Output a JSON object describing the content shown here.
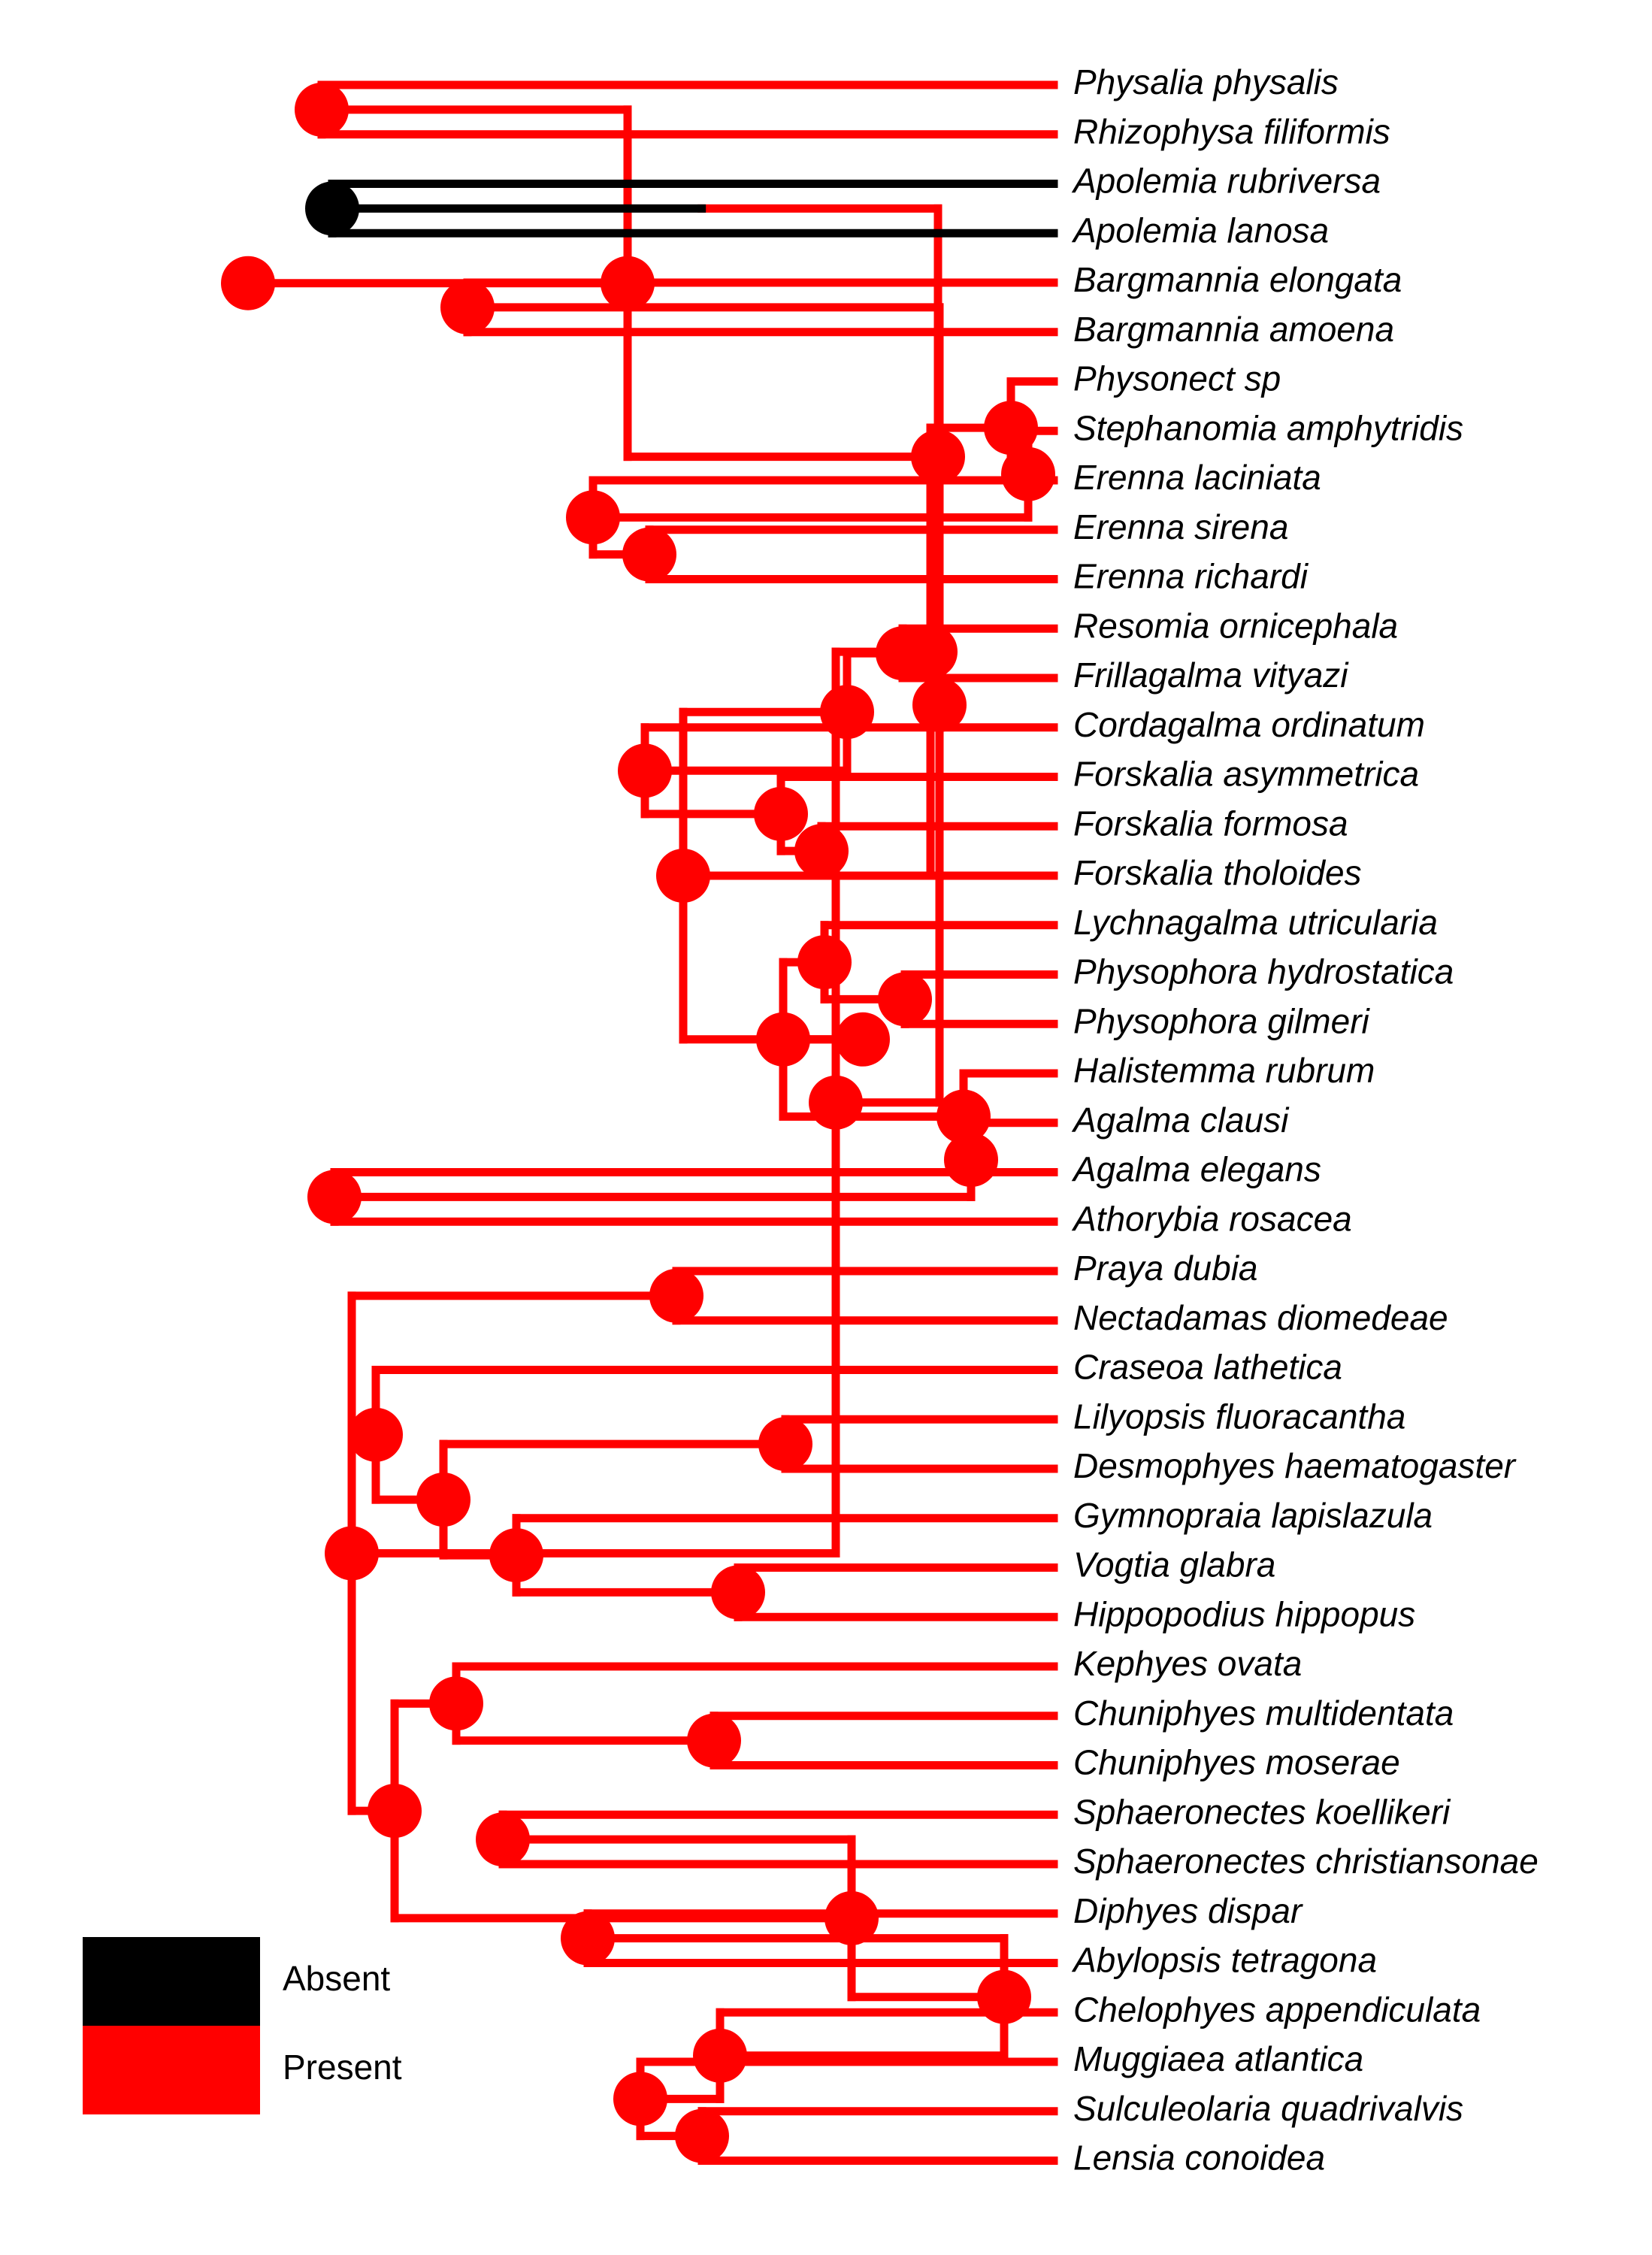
{
  "colors": {
    "present": "#ff0000",
    "absent": "#000000"
  },
  "legend": [
    {
      "state": "absent",
      "label": "Absent",
      "color": "#000000"
    },
    {
      "state": "present",
      "label": "Present",
      "color": "#ff0000"
    }
  ],
  "taxa": [
    "Physalia physalis",
    "Rhizophysa filiformis",
    "Apolemia rubriversa",
    "Apolemia lanosa",
    "Bargmannia elongata",
    "Bargmannia amoena",
    "Physonect sp",
    "Stephanomia amphytridis",
    "Erenna laciniata",
    "Erenna sirena",
    "Erenna richardi",
    "Resomia ornicephala",
    "Frillagalma vityazi",
    "Cordagalma ordinatum",
    "Forskalia asymmetrica",
    "Forskalia formosa",
    "Forskalia tholoides",
    "Lychnagalma utricularia",
    "Physophora hydrostatica",
    "Physophora gilmeri",
    "Halistemma rubrum",
    "Agalma clausi",
    "Agalma elegans",
    "Athorybia rosacea",
    "Praya dubia",
    "Nectadamas diomedeae",
    "Craseoa lathetica",
    "Lilyopsis fluoracantha",
    "Desmophyes haematogaster",
    "Gymnopraia lapislazula",
    "Vogtia glabra",
    "Hippopodius hippopus",
    "Kephyes ovata",
    "Chuniphyes multidentata",
    "Chuniphyes moserae",
    "Sphaeronectes koellikeri",
    "Sphaeronectes christiansonae",
    "Diphyes dispar",
    "Abylopsis tetragona",
    "Chelophyes appendiculata",
    "Muggiaea atlantica",
    "Sulculeolaria quadrivalvis",
    "Lensia conoidea"
  ],
  "tree_newick": "(((Physalia physalis,Rhizophysa filiformis),((Apolemia rubriversa,Apolemia lanosa),((Bargmannia elongata,Bargmannia amoena),(((Physonect sp,(Stephanomia amphytridis,(Erenna laciniata,(Erenna sirena,Erenna richardi)))),(((Resomia ornicephala,Frillagalma vityazi),(Cordagalma ordinatum,(Forskalia asymmetrica,(Forskalia formosa,Forskalia tholoides)))),(((Lychnagalma utricularia,(Physophora hydrostatica,Physophora gilmeri)),(Halistemma rubrum,(Agalma clausi,(Agalma elegans,Athorybia rosacea))))))),((Praya dubia,Nectadamas diomedeae),(Craseoa lathetica,((Lilyopsis fluoracantha,Desmophyes haematogaster),(Gymnopraia lapislazula,(Vogtia glabra,Hippopodius hippopus)))),((Kephyes ovata,(Chuniphyes multidentata,Chuniphyes moserae)),((Sphaeronectes koellikeri,Sphaeronectes christiansonae),((Diphyes dispar,Abylopsis tetragona),(Chelophyes appendiculata,(Muggiaea atlantica,(Sulculeolaria quadrivalvis,Lensia conoidea))))))))))));",
  "character_state": {
    "default": "present",
    "absent_clade": [
      "Apolemia rubriversa",
      "Apolemia lanosa"
    ],
    "transition": "present to absent along the stem of the Apolemia clade"
  }
}
